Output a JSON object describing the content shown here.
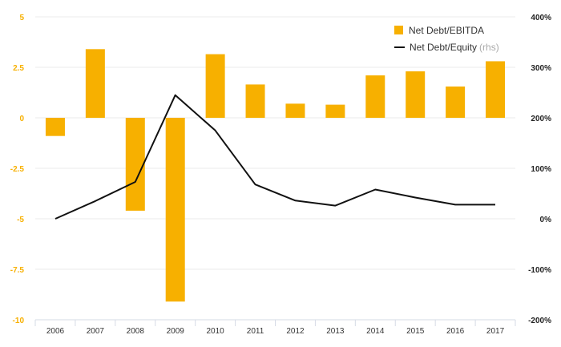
{
  "chart_data": {
    "type": "bar",
    "categories": [
      "2006",
      "2007",
      "2008",
      "2009",
      "2010",
      "2011",
      "2012",
      "2013",
      "2014",
      "2015",
      "2016",
      "2017"
    ],
    "series": [
      {
        "name": "Net Debt/EBITDA",
        "type": "bar",
        "axis": "left",
        "color": "#F7B000",
        "values": [
          -0.9,
          3.4,
          -4.6,
          -9.1,
          3.15,
          1.65,
          0.7,
          0.65,
          2.1,
          2.3,
          1.55,
          2.8
        ]
      },
      {
        "name": "Net Debt/Equity",
        "name_suffix": "(rhs)",
        "type": "line",
        "axis": "right",
        "color": "#111111",
        "values": [
          0,
          35,
          73,
          245,
          175,
          68,
          36,
          26,
          58,
          42,
          28,
          28
        ]
      }
    ],
    "y_left": {
      "ticks": [
        "5",
        "2.5",
        "0",
        "-2.5",
        "-5",
        "-7.5",
        "-10"
      ],
      "range": [
        -10,
        5
      ],
      "tick_color": "#F7B000"
    },
    "y_right": {
      "ticks": [
        "400%",
        "300%",
        "200%",
        "100%",
        "0%",
        "-100%",
        "-200%"
      ],
      "range": [
        -200,
        400
      ]
    },
    "grid": true,
    "legend_position": "top-right"
  }
}
